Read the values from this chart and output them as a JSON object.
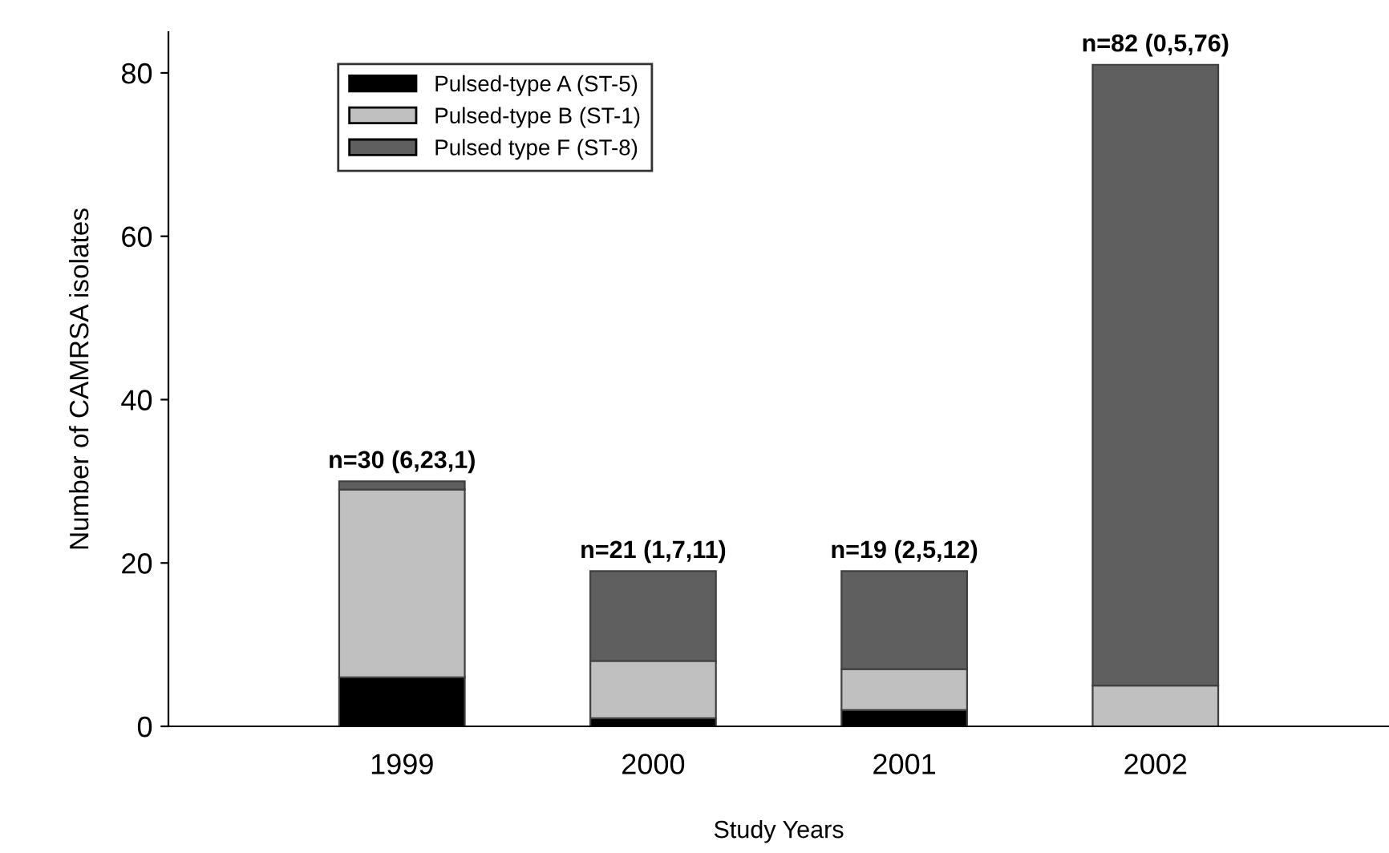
{
  "chart_data": {
    "type": "bar",
    "stacked": true,
    "xlabel": "Study Years",
    "ylabel": "Number of CAMRSA isolates",
    "categories": [
      "1999",
      "2000",
      "2001",
      "2002"
    ],
    "series": [
      {
        "name": "Pulsed-type A (ST-5)",
        "color": "#000000",
        "values": [
          6,
          1,
          2,
          0
        ]
      },
      {
        "name": "Pulsed-type B (ST-1)",
        "color": "#c0c0c0",
        "values": [
          23,
          7,
          5,
          5
        ]
      },
      {
        "name": "Pulsed type F (ST-8)",
        "color": "#5f5f5f",
        "values": [
          1,
          11,
          12,
          76
        ]
      }
    ],
    "totals": [
      "n=30 (6,23,1)",
      "n=21 (1,7,11)",
      "n=19 (2,5,12)",
      "n=82 (0,5,76)"
    ],
    "ylim": [
      0,
      85
    ],
    "yticks": [
      0,
      20,
      40,
      60,
      80
    ],
    "grid": false,
    "legend": "top left"
  }
}
